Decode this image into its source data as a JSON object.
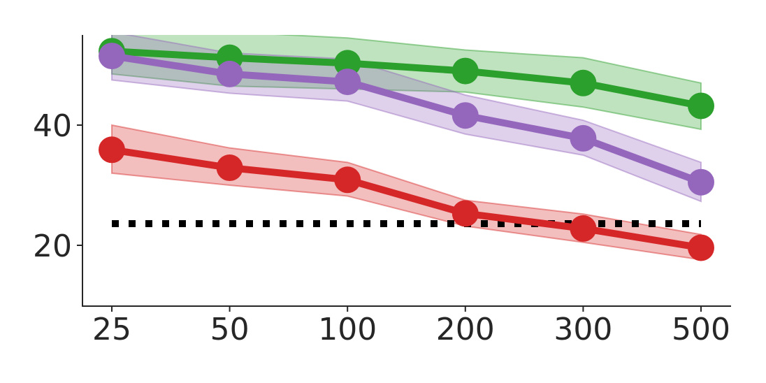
{
  "chart_data": {
    "type": "line",
    "title": "",
    "xlabel": "",
    "ylabel": "",
    "categories": [
      "25",
      "50",
      "100",
      "200",
      "300",
      "500"
    ],
    "x_scale": "categorical",
    "ylim": [
      10,
      55
    ],
    "yticks": [
      20,
      40
    ],
    "grid": false,
    "legend": "none",
    "series": [
      {
        "color": "#2ca02c",
        "band_color": "#2ca02c",
        "values": [
          52.3,
          51.2,
          50.3,
          49.0,
          47.0,
          43.2
        ],
        "lower": [
          48.5,
          46.5,
          46.0,
          45.5,
          43.0,
          39.3
        ],
        "upper": [
          56.0,
          55.5,
          54.5,
          52.5,
          51.2,
          47.0
        ]
      },
      {
        "color": "#9467bd",
        "band_color": "#9467bd",
        "values": [
          51.5,
          48.5,
          47.2,
          41.6,
          37.8,
          30.5
        ],
        "lower": [
          47.5,
          45.3,
          44.0,
          38.5,
          35.0,
          27.3
        ],
        "upper": [
          55.5,
          52.0,
          51.0,
          45.0,
          40.8,
          33.8
        ]
      },
      {
        "color": "#d62728",
        "band_color": "#d62728",
        "values": [
          35.9,
          32.9,
          30.9,
          25.3,
          22.8,
          19.6
        ],
        "lower": [
          32.0,
          30.0,
          28.2,
          23.2,
          20.5,
          17.6
        ],
        "upper": [
          40.0,
          36.2,
          33.8,
          27.5,
          25.2,
          21.8
        ]
      }
    ],
    "reference_line": {
      "y": 23.6,
      "style": "dotted",
      "color": "#000000"
    }
  }
}
